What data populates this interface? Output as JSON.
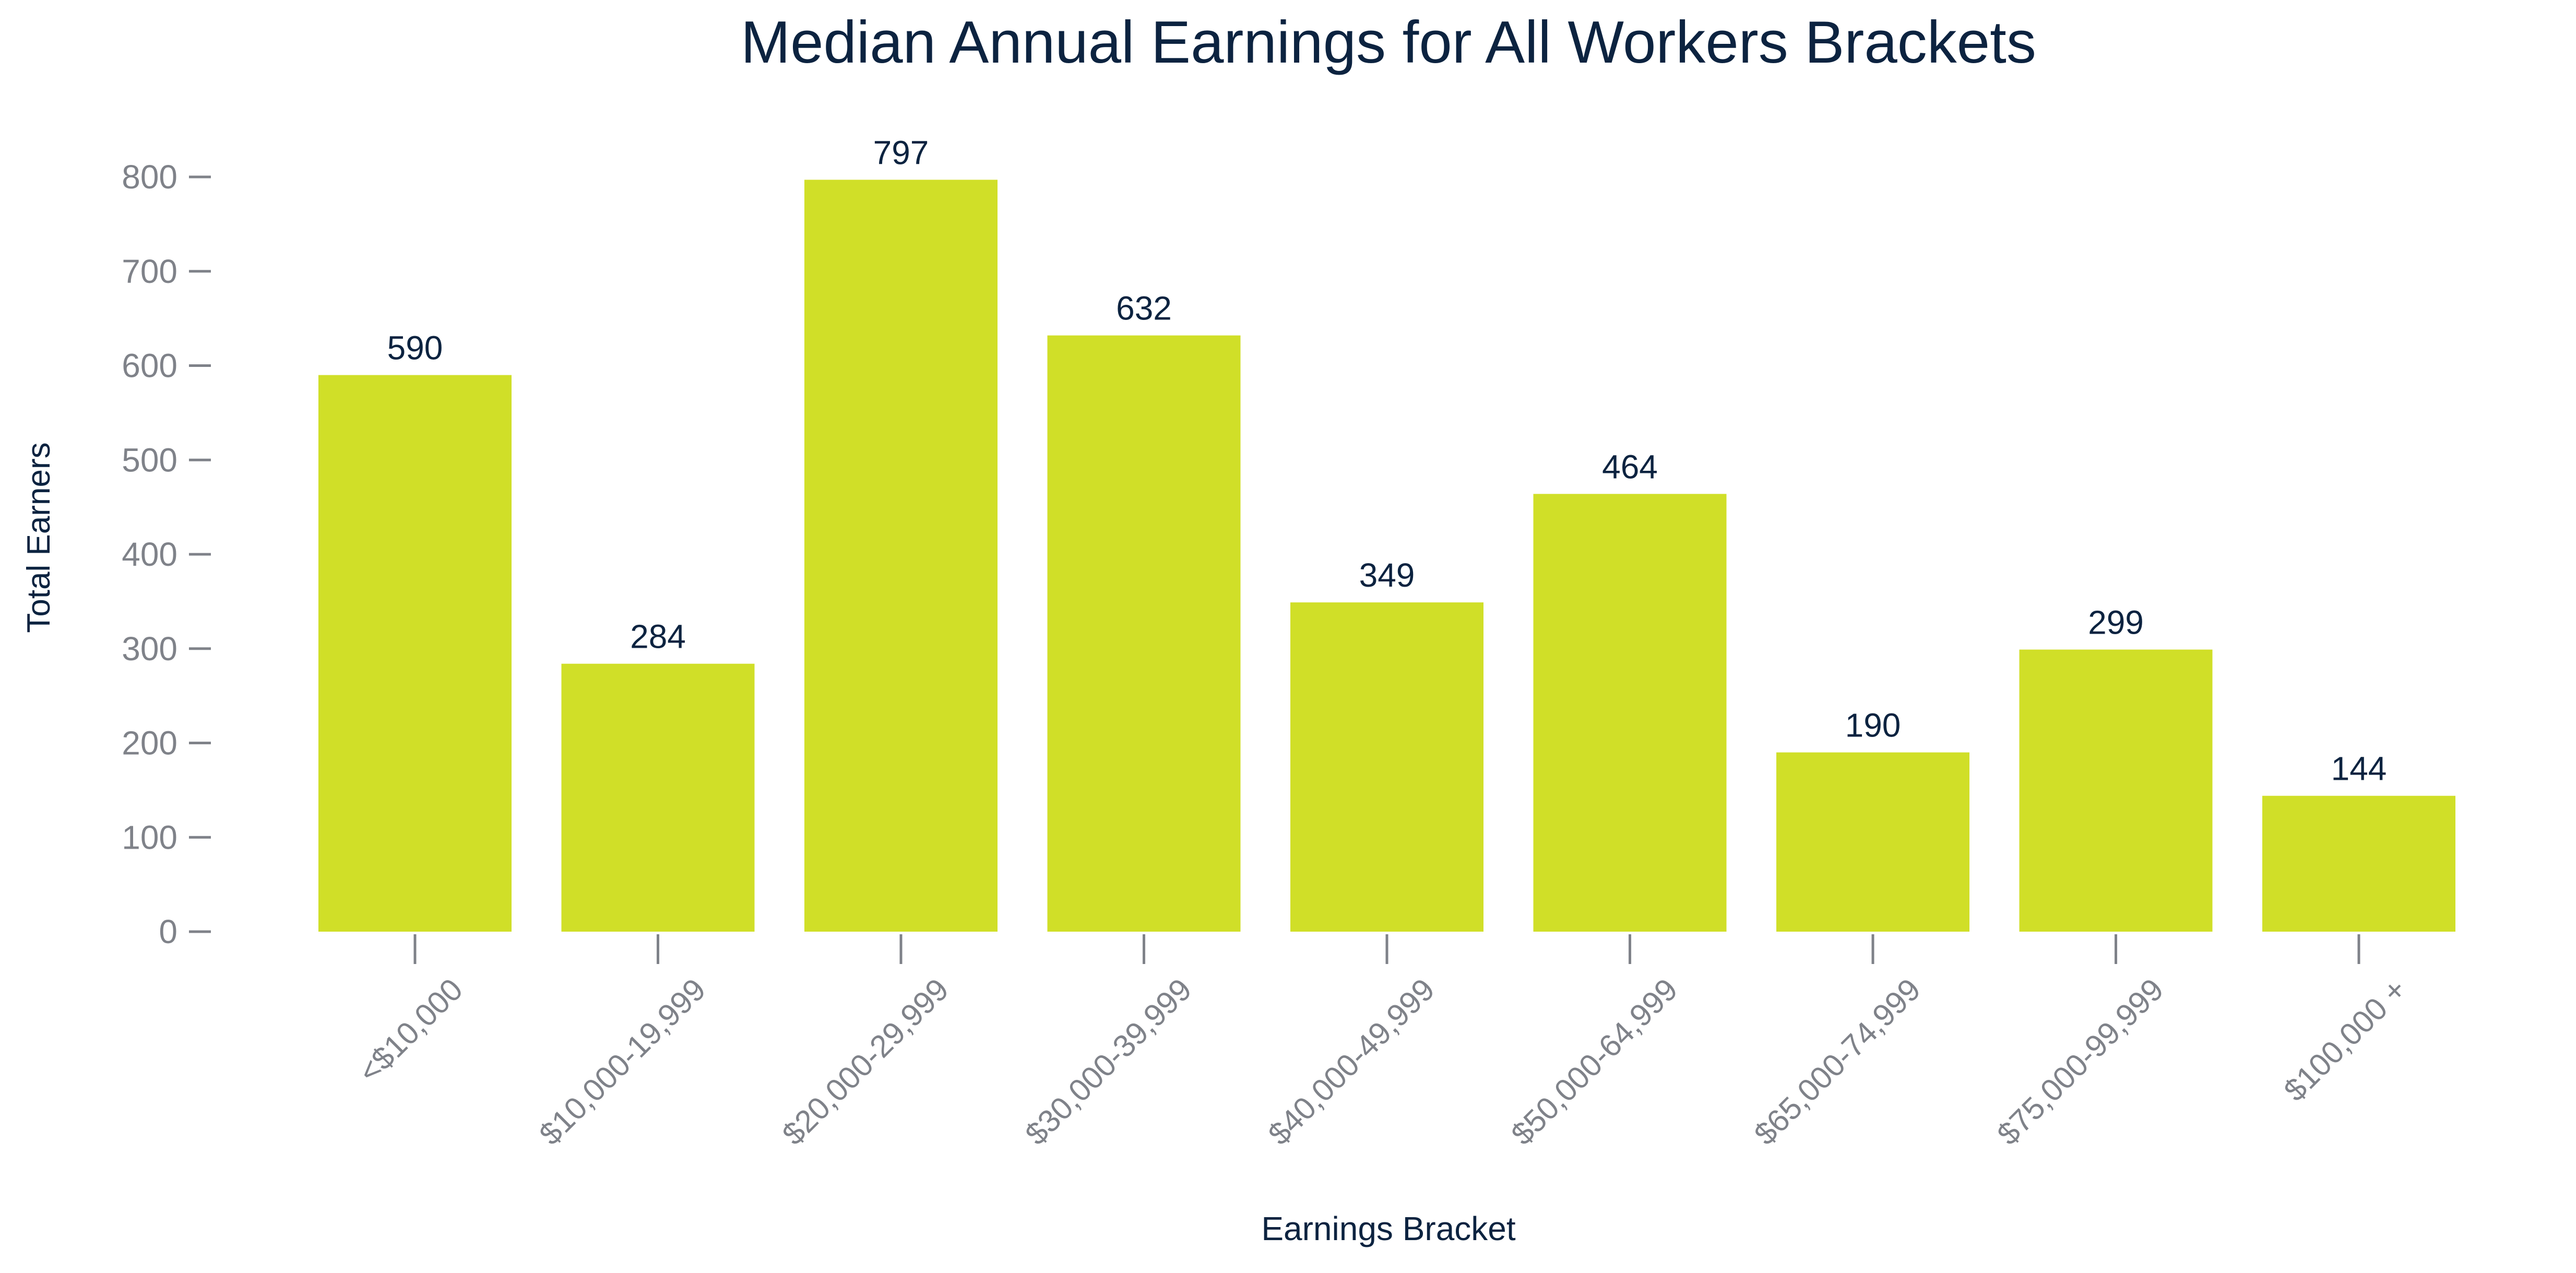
{
  "chart_data": {
    "type": "bar",
    "title": "Median Annual Earnings for All Workers Brackets",
    "xlabel": "Earnings Bracket",
    "ylabel": "Total Earners",
    "categories": [
      "<$10,000",
      "$10,000-19,999",
      "$20,000-29,999",
      "$30,000-39,999",
      "$40,000-49,999",
      "$50,000-64,999",
      "$65,000-74,999",
      "$75,000-99,999",
      "$100,000 +"
    ],
    "values": [
      590,
      284,
      797,
      632,
      349,
      464,
      190,
      299,
      144
    ],
    "data_labels": [
      "590",
      "284",
      "797",
      "632",
      "349",
      "464",
      "190",
      "299",
      "144"
    ],
    "yticks": [
      0,
      100,
      200,
      300,
      400,
      500,
      600,
      700,
      800
    ],
    "ylim": [
      0,
      840
    ],
    "grid": false,
    "legend": "none",
    "colors": {
      "bar": "#d0df28",
      "title": "#0c2340",
      "axis_label": "#0c2340",
      "data_label": "#0c2340",
      "tick_label": "#7f8289",
      "tick": "#7f8289"
    }
  }
}
